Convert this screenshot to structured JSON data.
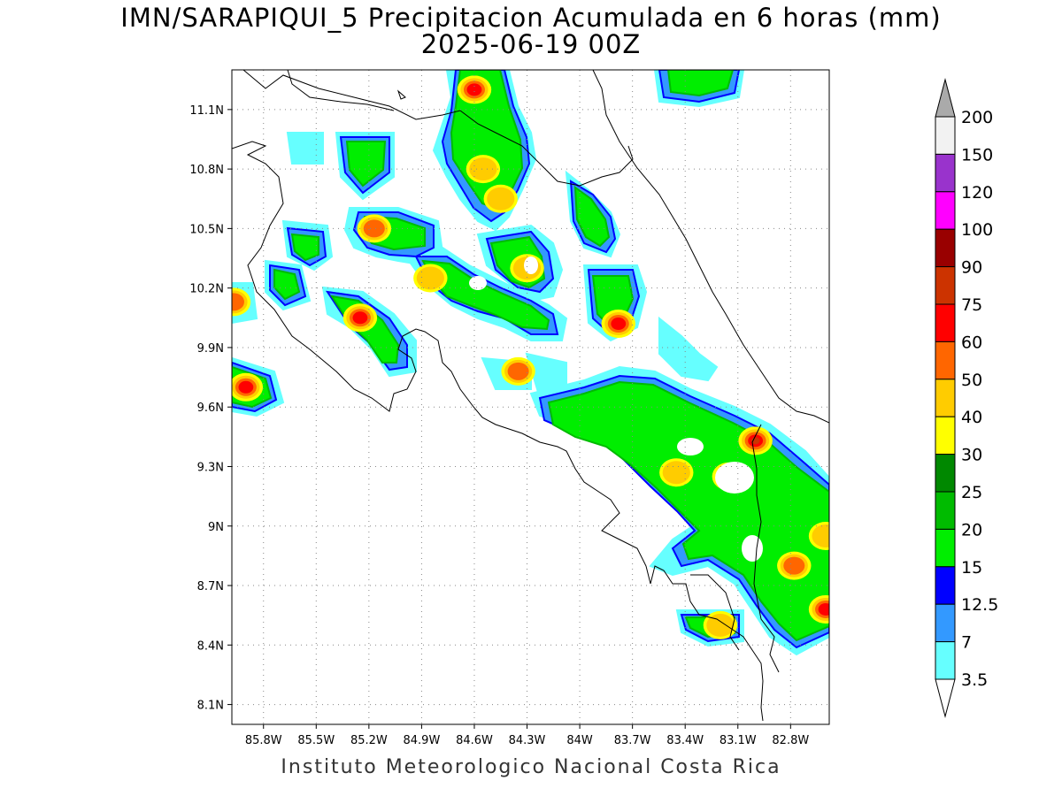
{
  "title": {
    "line1": "IMN/SARAPIQUI_5 Precipitacion Acumulada en 6 horas (mm)",
    "line2": "2025-06-19 00Z"
  },
  "footer": "Instituto Meteorologico Nacional Costa Rica",
  "map": {
    "lon_range": [
      -85.98,
      -82.58
    ],
    "lat_range": [
      8.0,
      11.3
    ],
    "lon_ticks": [
      {
        "value": -85.8,
        "label": "85.8W"
      },
      {
        "value": -85.5,
        "label": "85.5W"
      },
      {
        "value": -85.2,
        "label": "85.2W"
      },
      {
        "value": -84.9,
        "label": "84.9W"
      },
      {
        "value": -84.6,
        "label": "84.6W"
      },
      {
        "value": -84.3,
        "label": "84.3W"
      },
      {
        "value": -84.0,
        "label": "84W"
      },
      {
        "value": -83.7,
        "label": "83.7W"
      },
      {
        "value": -83.4,
        "label": "83.4W"
      },
      {
        "value": -83.1,
        "label": "83.1W"
      },
      {
        "value": -82.8,
        "label": "82.8W"
      }
    ],
    "lat_ticks": [
      {
        "value": 11.1,
        "label": "11.1N"
      },
      {
        "value": 10.8,
        "label": "10.8N"
      },
      {
        "value": 10.5,
        "label": "10.5N"
      },
      {
        "value": 10.2,
        "label": "10.2N"
      },
      {
        "value": 9.9,
        "label": "9.9N"
      },
      {
        "value": 9.6,
        "label": "9.6N"
      },
      {
        "value": 9.3,
        "label": "9.3N"
      },
      {
        "value": 9.0,
        "label": "9N"
      },
      {
        "value": 8.7,
        "label": "8.7N"
      },
      {
        "value": 8.4,
        "label": "8.4N"
      },
      {
        "value": 8.1,
        "label": "8.1N"
      }
    ],
    "grid": true
  },
  "colorbar": {
    "labels": [
      "3.5",
      "7",
      "12.5",
      "15",
      "20",
      "25",
      "30",
      "40",
      "50",
      "60",
      "75",
      "90",
      "100",
      "120",
      "150",
      "200"
    ],
    "colors": [
      "#ffffff",
      "#66ffff",
      "#3399ff",
      "#0000ff",
      "#00ee00",
      "#00bb00",
      "#008800",
      "#ffff00",
      "#ffcc00",
      "#ff6600",
      "#ff0000",
      "#cc3300",
      "#990000",
      "#ff00ff",
      "#9933cc",
      "#f2f2f2",
      "#aaaaaa"
    ]
  },
  "precip_cells": [
    {
      "lon": -84.55,
      "lat": 10.8,
      "level": 8
    },
    {
      "lon": -84.6,
      "lat": 11.2,
      "level": 10
    },
    {
      "lon": -84.45,
      "lat": 10.65,
      "level": 8
    },
    {
      "lon": -85.17,
      "lat": 10.5,
      "level": 9
    },
    {
      "lon": -84.85,
      "lat": 10.25,
      "level": 8
    },
    {
      "lon": -84.3,
      "lat": 10.3,
      "level": 8
    },
    {
      "lon": -85.25,
      "lat": 10.05,
      "level": 10
    },
    {
      "lon": -85.9,
      "lat": 9.7,
      "level": 10
    },
    {
      "lon": -85.97,
      "lat": 10.13,
      "level": 9
    },
    {
      "lon": -84.35,
      "lat": 9.78,
      "level": 9
    },
    {
      "lon": -83.78,
      "lat": 10.02,
      "level": 10
    },
    {
      "lon": -83.0,
      "lat": 9.43,
      "level": 11
    },
    {
      "lon": -82.78,
      "lat": 8.8,
      "level": 9
    },
    {
      "lon": -82.6,
      "lat": 8.58,
      "level": 10
    },
    {
      "lon": -83.2,
      "lat": 8.5,
      "level": 8
    },
    {
      "lon": -83.45,
      "lat": 9.27,
      "level": 8
    },
    {
      "lon": -83.15,
      "lat": 9.25,
      "level": 8
    },
    {
      "lon": -82.6,
      "lat": 8.95,
      "level": 8
    }
  ]
}
